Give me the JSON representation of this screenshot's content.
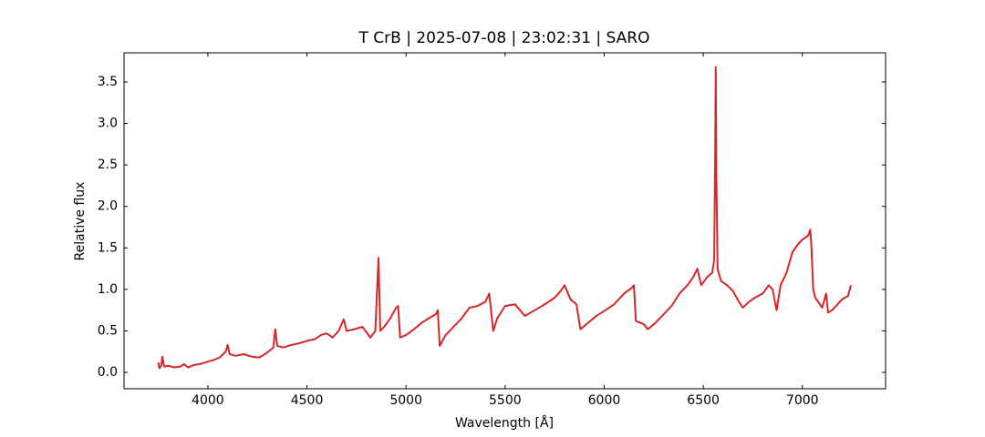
{
  "chart_data": {
    "type": "line",
    "title": "T CrB | 2025-07-08 | 23:02:31 | SARO",
    "x_label": "Wavelength [Å]",
    "y_label": "Relative flux",
    "color": "#d62728",
    "xlim": [
      3577,
      7420
    ],
    "ylim": [
      -0.197,
      3.851
    ],
    "xticks": [
      4000,
      4500,
      5000,
      5500,
      6000,
      6500,
      7000
    ],
    "yticks": [
      {
        "value": 0,
        "label": "0.0"
      },
      0.5,
      {
        "value": 1,
        "label": "1.0"
      },
      1.5,
      {
        "value": 2,
        "label": "2.0"
      },
      2.5,
      {
        "value": 3,
        "label": "3.0"
      },
      3.5
    ],
    "x": [
      3750,
      3755,
      3765,
      3770,
      3780,
      3800,
      3830,
      3860,
      3880,
      3900,
      3930,
      3960,
      4000,
      4030,
      4060,
      4090,
      4100,
      4110,
      4140,
      4180,
      4220,
      4260,
      4300,
      4330,
      4340,
      4350,
      4380,
      4420,
      4460,
      4500,
      4540,
      4570,
      4600,
      4630,
      4660,
      4686,
      4700,
      4740,
      4780,
      4820,
      4845,
      4861,
      4870,
      4890,
      4920,
      4950,
      4960,
      4970,
      5000,
      5040,
      5080,
      5120,
      5150,
      5160,
      5170,
      5200,
      5240,
      5280,
      5320,
      5360,
      5400,
      5420,
      5440,
      5460,
      5500,
      5550,
      5600,
      5650,
      5700,
      5750,
      5780,
      5800,
      5830,
      5860,
      5880,
      5920,
      5960,
      6000,
      6050,
      6100,
      6140,
      6150,
      6160,
      6200,
      6220,
      6260,
      6300,
      6340,
      6380,
      6420,
      6450,
      6470,
      6490,
      6520,
      6545,
      6555,
      6560,
      6563,
      6566,
      6572,
      6590,
      6620,
      6650,
      6680,
      6700,
      6730,
      6760,
      6800,
      6830,
      6850,
      6870,
      6890,
      6920,
      6950,
      6980,
      7000,
      7030,
      7040,
      7045,
      7055,
      7065,
      7080,
      7100,
      7120,
      7130,
      7150,
      7170,
      7200,
      7230,
      7245
    ],
    "values": [
      0.12,
      0.05,
      0.08,
      0.19,
      0.07,
      0.08,
      0.06,
      0.07,
      0.1,
      0.06,
      0.09,
      0.1,
      0.13,
      0.15,
      0.18,
      0.25,
      0.33,
      0.22,
      0.2,
      0.22,
      0.19,
      0.18,
      0.24,
      0.3,
      0.52,
      0.32,
      0.3,
      0.33,
      0.35,
      0.38,
      0.4,
      0.45,
      0.47,
      0.42,
      0.5,
      0.64,
      0.5,
      0.52,
      0.55,
      0.42,
      0.5,
      1.38,
      0.5,
      0.55,
      0.65,
      0.78,
      0.8,
      0.42,
      0.45,
      0.52,
      0.6,
      0.66,
      0.7,
      0.75,
      0.32,
      0.45,
      0.55,
      0.65,
      0.78,
      0.8,
      0.85,
      0.95,
      0.5,
      0.65,
      0.8,
      0.82,
      0.68,
      0.75,
      0.82,
      0.9,
      0.98,
      1.05,
      0.88,
      0.82,
      0.52,
      0.6,
      0.68,
      0.74,
      0.82,
      0.95,
      1.02,
      1.05,
      0.62,
      0.58,
      0.52,
      0.6,
      0.7,
      0.8,
      0.95,
      1.05,
      1.15,
      1.25,
      1.05,
      1.15,
      1.2,
      1.35,
      2.6,
      3.68,
      2.4,
      1.25,
      1.1,
      1.05,
      0.98,
      0.85,
      0.78,
      0.85,
      0.9,
      0.95,
      1.05,
      1.0,
      0.75,
      1.05,
      1.2,
      1.45,
      1.55,
      1.6,
      1.65,
      1.72,
      1.55,
      1.0,
      0.9,
      0.85,
      0.78,
      0.95,
      0.72,
      0.75,
      0.8,
      0.88,
      0.92,
      1.05
    ]
  }
}
